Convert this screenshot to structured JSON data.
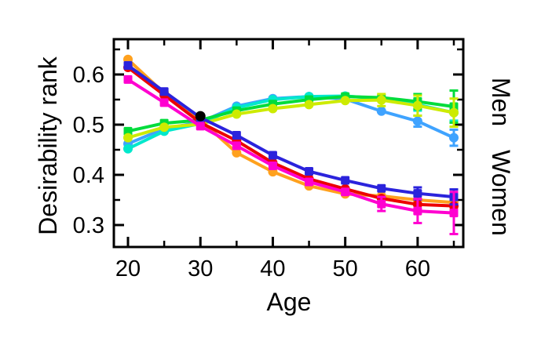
{
  "chart_data": {
    "type": "line",
    "title": "",
    "xlabel": "Age",
    "ylabel": "Desirability rank",
    "right_label_men": "Men",
    "right_label_women": "Women",
    "x": [
      20,
      25,
      30,
      35,
      40,
      45,
      50,
      55,
      60,
      65
    ],
    "xlim": [
      18,
      66.5
    ],
    "ylim": [
      0.256,
      0.67
    ],
    "xticks_major": [
      20,
      30,
      40,
      50,
      60
    ],
    "xticks_minor": [
      25,
      35,
      45,
      55,
      65
    ],
    "yticks_major": [
      0.3,
      0.4,
      0.5,
      0.6
    ],
    "ytick_labels": [
      "0.3",
      "0.4",
      "0.5",
      "0.6"
    ],
    "yticks_minor": [
      0.35,
      0.45,
      0.55,
      0.65
    ],
    "grid": false,
    "legend": "none",
    "series": [
      {
        "name": "men-skyblue",
        "group": "Men",
        "color": "#3FA3FF",
        "marker": "circle",
        "values": [
          0.462,
          0.492,
          0.505,
          0.537,
          0.552,
          0.556,
          0.551,
          0.527,
          0.507,
          0.474
        ],
        "err": [
          0.005,
          0.005,
          0.005,
          0.005,
          0.006,
          0.006,
          0.007,
          0.009,
          0.011,
          0.016
        ]
      },
      {
        "name": "men-cyan",
        "group": "Men",
        "color": "#00E8CC",
        "marker": "circle",
        "values": [
          0.452,
          0.487,
          0.502,
          0.534,
          0.55,
          0.556,
          0.557,
          0.552,
          0.54,
          0.524
        ],
        "err": [
          0.005,
          0.005,
          0.005,
          0.005,
          0.006,
          0.006,
          0.007,
          0.009,
          0.012,
          0.016
        ]
      },
      {
        "name": "men-green",
        "group": "Men",
        "color": "#00DC3C",
        "marker": "square",
        "values": [
          0.487,
          0.503,
          0.509,
          0.528,
          0.541,
          0.55,
          0.556,
          0.554,
          0.546,
          0.536
        ],
        "err": [
          0.006,
          0.005,
          0.005,
          0.005,
          0.006,
          0.006,
          0.008,
          0.01,
          0.015,
          0.032
        ]
      },
      {
        "name": "men-chartreuse",
        "group": "Men",
        "color": "#CDEB00",
        "marker": "circle",
        "values": [
          0.474,
          0.495,
          0.501,
          0.521,
          0.532,
          0.54,
          0.548,
          0.549,
          0.538,
          0.524
        ],
        "err": [
          0.006,
          0.005,
          0.005,
          0.005,
          0.006,
          0.006,
          0.008,
          0.012,
          0.02,
          0.028
        ]
      },
      {
        "name": "women-orange",
        "group": "Women",
        "color": "#FFA11E",
        "marker": "circle",
        "values": [
          0.63,
          0.563,
          0.509,
          0.444,
          0.406,
          0.378,
          0.362,
          0.358,
          0.35,
          0.345
        ],
        "err": [
          0.006,
          0.005,
          0.005,
          0.005,
          0.006,
          0.006,
          0.007,
          0.008,
          0.01,
          0.012
        ]
      },
      {
        "name": "women-red",
        "group": "Women",
        "color": "#EC0000",
        "marker": "circle",
        "values": [
          0.614,
          0.559,
          0.504,
          0.468,
          0.424,
          0.392,
          0.372,
          0.353,
          0.341,
          0.338
        ],
        "err": [
          0.005,
          0.005,
          0.005,
          0.005,
          0.006,
          0.006,
          0.007,
          0.008,
          0.01,
          0.012
        ]
      },
      {
        "name": "women-blue",
        "group": "Women",
        "color": "#2B23DC",
        "marker": "square",
        "values": [
          0.618,
          0.566,
          0.514,
          0.479,
          0.439,
          0.407,
          0.389,
          0.373,
          0.363,
          0.356
        ],
        "err": [
          0.006,
          0.005,
          0.005,
          0.006,
          0.006,
          0.007,
          0.007,
          0.009,
          0.012,
          0.015
        ]
      },
      {
        "name": "women-magenta",
        "group": "Women",
        "color": "#FF00D0",
        "marker": "square",
        "values": [
          0.59,
          0.544,
          0.497,
          0.458,
          0.418,
          0.386,
          0.366,
          0.342,
          0.328,
          0.324
        ],
        "err": [
          0.006,
          0.006,
          0.006,
          0.007,
          0.008,
          0.008,
          0.009,
          0.014,
          0.024,
          0.042
        ]
      }
    ],
    "reference_point": {
      "x": 30,
      "y": 0.517,
      "color": "#000000",
      "marker": "circle"
    }
  }
}
